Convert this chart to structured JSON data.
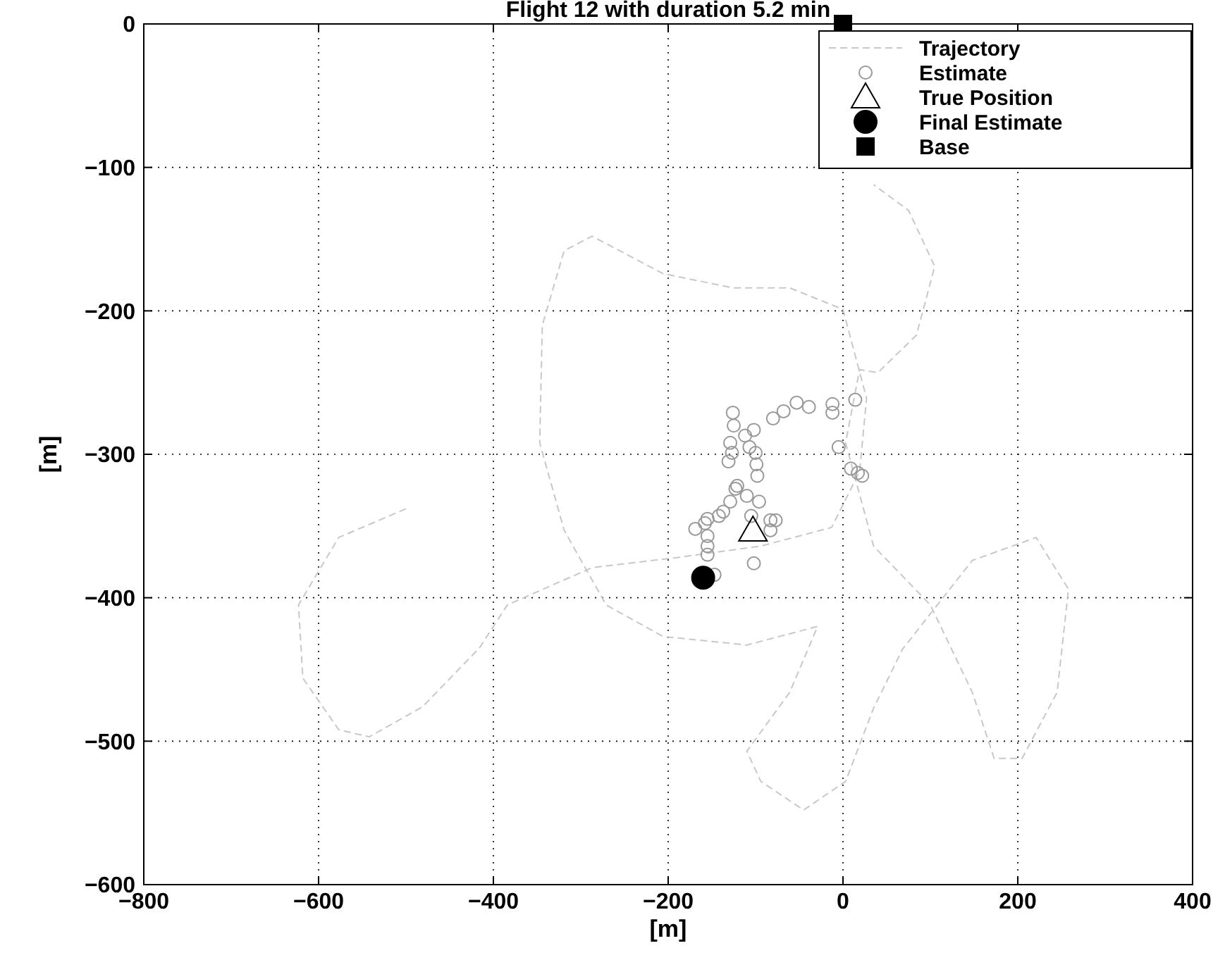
{
  "chart_data": {
    "type": "scatter",
    "title": "Flight 12 with duration 5.2 min",
    "xlabel": "[m]",
    "ylabel": "[m]",
    "xlim": [
      -800,
      400
    ],
    "xticks": [
      -800,
      -600,
      -400,
      -200,
      0,
      200,
      400
    ],
    "ylim": [
      -600,
      0
    ],
    "yticks": [
      -600,
      -500,
      -400,
      -300,
      -200,
      -100,
      0
    ],
    "grid": true,
    "legend": "top right",
    "series": [
      {
        "name": "Trajectory",
        "type": "line",
        "line_style": "dashed",
        "marker": "none",
        "color": "#c8c8c8",
        "x": [
          -500,
          -577,
          -623,
          -618,
          -577,
          -542,
          -481,
          -416,
          -384,
          -287,
          -190,
          -94,
          -13,
          19,
          27,
          0,
          -61,
          -126,
          -206,
          -287,
          -319,
          -344,
          -347,
          -319,
          -271,
          -206,
          -110,
          -29,
          -61,
          -110,
          -94,
          -45,
          3,
          35,
          68,
          148,
          221,
          258,
          245,
          205,
          173,
          148,
          100,
          35,
          3,
          19,
          40,
          84,
          105,
          75,
          35
        ],
        "values": [
          -338,
          -358,
          -405,
          -456,
          -492,
          -497,
          -476,
          -435,
          -405,
          -379,
          -372,
          -364,
          -351,
          -312,
          -261,
          -199,
          -184,
          -184,
          -174,
          -148,
          -158,
          -210,
          -292,
          -353,
          -405,
          -427,
          -433,
          -420,
          -466,
          -507,
          -528,
          -548,
          -528,
          -477,
          -436,
          -374,
          -358,
          -394,
          -466,
          -512,
          -512,
          -466,
          -405,
          -364,
          -292,
          -241,
          -243,
          -217,
          -169,
          -130,
          -112
        ]
      },
      {
        "name": "Estimate",
        "marker": "circle",
        "color": "#999999",
        "x": [
          -126,
          -125,
          -129,
          -131,
          -127,
          -112,
          -102,
          -107,
          -100,
          -99,
          -98,
          -80,
          -68,
          -53,
          -39,
          -12,
          -12,
          14,
          -5,
          9,
          17,
          22,
          -121,
          -123,
          -129,
          -110,
          -96,
          -137,
          -142,
          -155,
          -169,
          -158,
          -155,
          -155,
          -155,
          -147,
          -102,
          -83,
          -77,
          -83,
          -105
        ],
        "values": [
          -271,
          -280,
          -292,
          -305,
          -299,
          -287,
          -283,
          -295,
          -299,
          -307,
          -315,
          -275,
          -270,
          -264,
          -267,
          -265,
          -271,
          -262,
          -295,
          -310,
          -313,
          -315,
          -322,
          -324,
          -333,
          -329,
          -333,
          -340,
          -343,
          -345,
          -352,
          -348,
          -357,
          -364,
          -370,
          -384,
          -376,
          -346,
          -346,
          -353,
          -343
        ]
      },
      {
        "name": "True Position",
        "marker": "triangle",
        "color": "#000000",
        "x": [
          -103
        ],
        "values": [
          -353
        ]
      },
      {
        "name": "Final Estimate",
        "marker": "circle",
        "color": "#000000",
        "x": [
          -160
        ],
        "values": [
          -386
        ]
      },
      {
        "name": "Base",
        "marker": "square",
        "color": "#000000",
        "x": [
          0
        ],
        "values": [
          0
        ]
      }
    ]
  }
}
